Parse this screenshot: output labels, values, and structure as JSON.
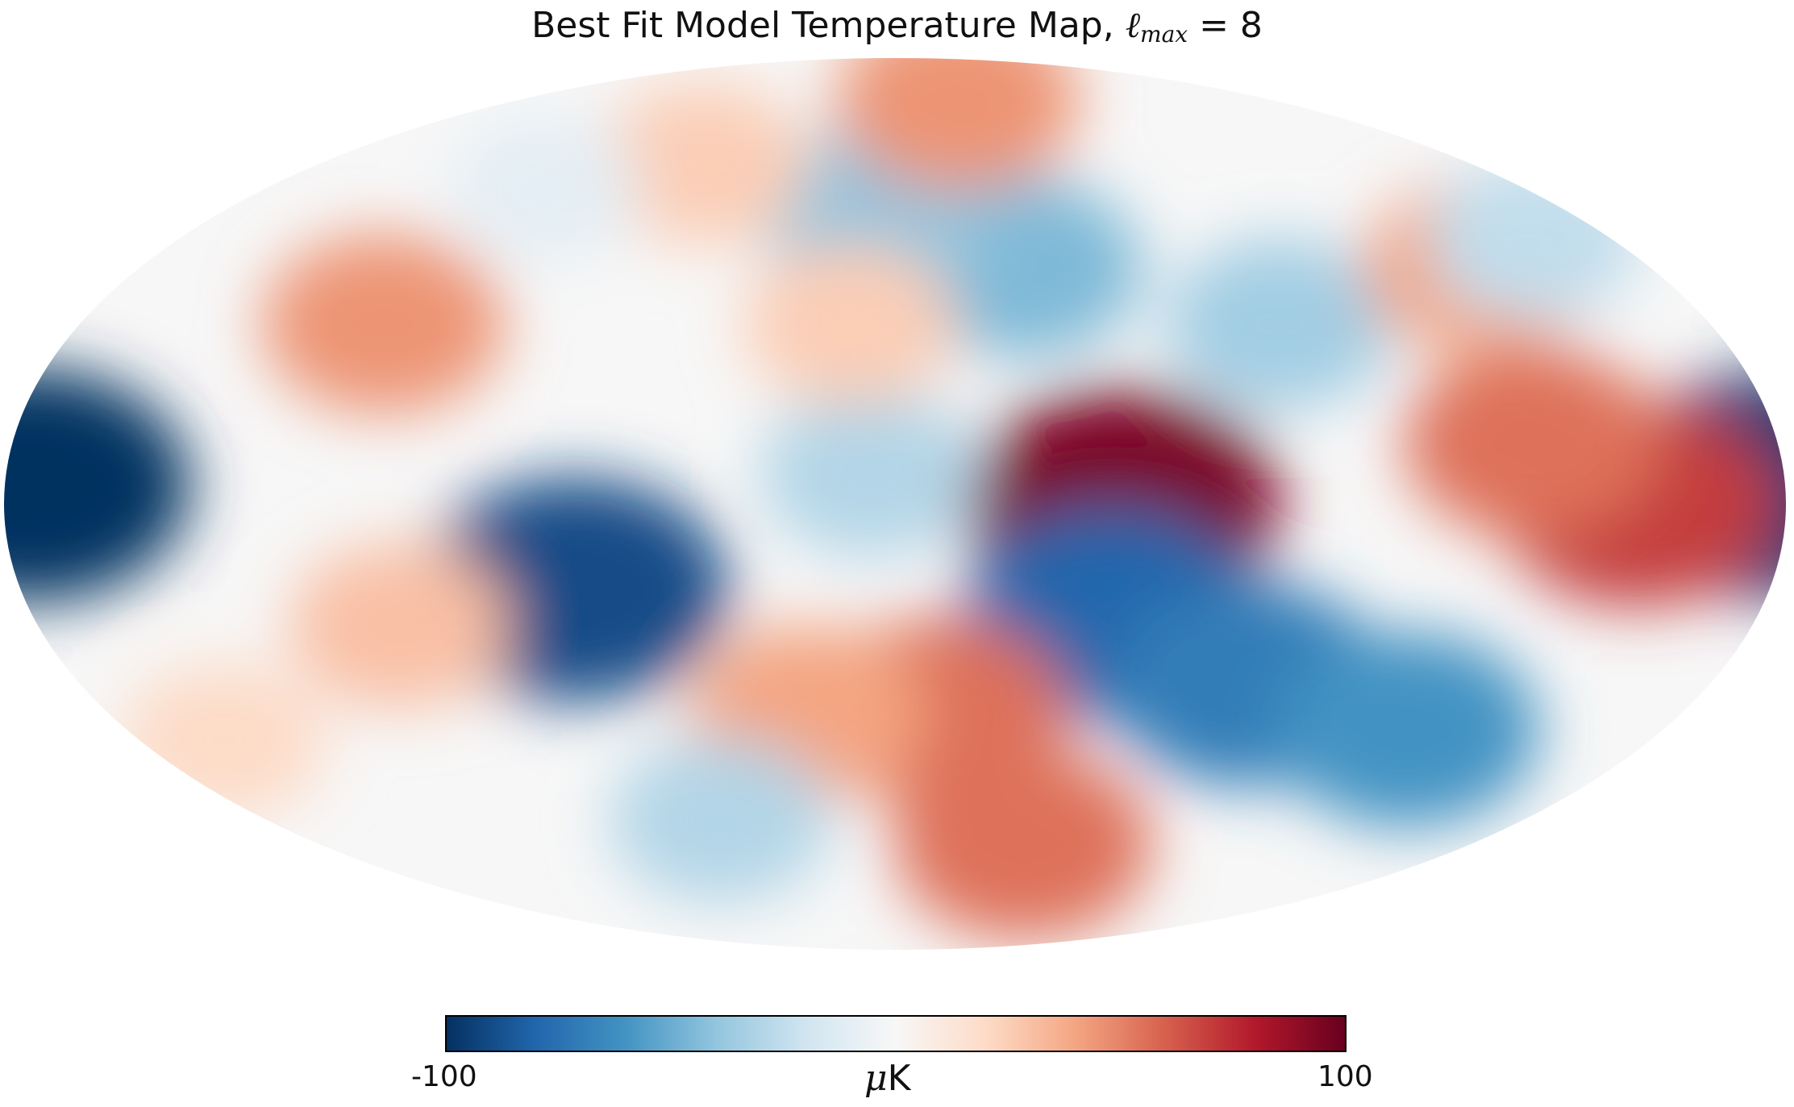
{
  "chart_data": {
    "type": "heatmap",
    "projection": "mollweide",
    "title": {
      "text": "Best Fit Model Temperature Map, ",
      "math_symbol": "ℓ",
      "math_sub": "max",
      "math_rest": " = 8"
    },
    "colorbar": {
      "min_label": "-100",
      "max_label": "100",
      "vmin": -100,
      "vmax": 100,
      "unit_symbol": "μ",
      "unit": "K",
      "colormap": "RdBu_r",
      "orientation": "horizontal",
      "position": "bottom"
    },
    "grid": false,
    "colors": {
      "deep_blue": "#053061",
      "blue": "#2166ac",
      "mid_blue": "#4393c3",
      "light_blue": "#92c5de",
      "pale_blue": "#d1e5f0",
      "neutral": "#f7f7f7",
      "pale_red": "#fddbc7",
      "light_red": "#f4a582",
      "mid_red": "#d6604d",
      "red": "#b2182b",
      "deep_red": "#67001f"
    },
    "features": [
      {
        "lon": 175,
        "lat": 3,
        "value": -100
      },
      {
        "lon": -178,
        "lat": 3,
        "value": -95
      },
      {
        "lon": 66,
        "lat": -14,
        "value": -90
      },
      {
        "lon": -46,
        "lat": 0,
        "value": 95
      },
      {
        "lon": -45,
        "lat": -18,
        "value": -80
      },
      {
        "lon": -78,
        "lat": -30,
        "value": -70
      },
      {
        "lon": -120,
        "lat": -38,
        "value": -60
      },
      {
        "lon": -30,
        "lat": 40,
        "value": -45
      },
      {
        "lon": 4,
        "lat": 50,
        "value": -40
      },
      {
        "lon": 5,
        "lat": 5,
        "value": -30
      },
      {
        "lon": -85,
        "lat": 30,
        "value": -35
      },
      {
        "lon": -150,
        "lat": 0,
        "value": 70
      },
      {
        "lon": -130,
        "lat": 10,
        "value": 55
      },
      {
        "lon": -140,
        "lat": 40,
        "value": 40
      },
      {
        "lon": -40,
        "lat": -60,
        "value": 55
      },
      {
        "lon": -10,
        "lat": -35,
        "value": 55
      },
      {
        "lon": 20,
        "lat": -35,
        "value": 40
      },
      {
        "lon": 113,
        "lat": 30,
        "value": 45
      },
      {
        "lon": 104,
        "lat": -20,
        "value": 30
      },
      {
        "lon": 10,
        "lat": 30,
        "value": 25
      },
      {
        "lon": -30,
        "lat": 75,
        "value": 45
      },
      {
        "lon": 60,
        "lat": 60,
        "value": 25
      },
      {
        "lon": 50,
        "lat": -55,
        "value": -30
      },
      {
        "lon": 100,
        "lat": 55,
        "value": -10
      },
      {
        "lon": -160,
        "lat": 45,
        "value": -25
      },
      {
        "lon": 160,
        "lat": -40,
        "value": 20
      }
    ]
  }
}
